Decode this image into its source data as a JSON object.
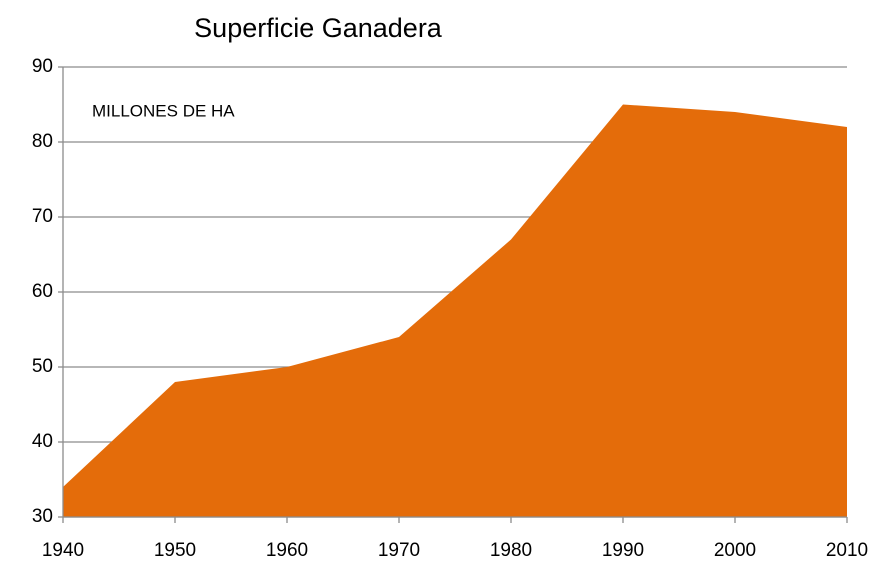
{
  "chart_data": {
    "type": "area",
    "title": "Superficie Ganadera",
    "annotation": "MILLONES  DE HA",
    "x": [
      1940,
      1950,
      1960,
      1970,
      1980,
      1990,
      2000,
      2010
    ],
    "values": [
      34,
      48,
      50,
      54,
      67,
      85,
      84,
      82
    ],
    "color": "#e46c0a",
    "xlim": [
      1940,
      2010
    ],
    "xticks": [
      1940,
      1950,
      1960,
      1970,
      1980,
      1990,
      2000,
      2010
    ],
    "ylim": [
      30,
      90
    ],
    "yticks": [
      30,
      40,
      50,
      60,
      70,
      80,
      90
    ],
    "grid": true
  }
}
